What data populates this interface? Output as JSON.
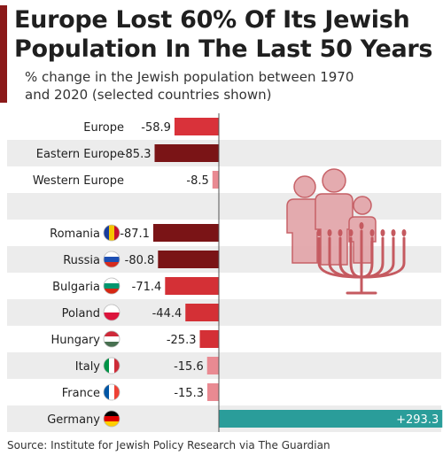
{
  "title": "Europe Lost 60% Of Its Jewish Population In The Last 50 Years",
  "subtitle": "% change in the Jewish population between 1970 and 2020 (selected countries shown)",
  "source": "Source: Institute for Jewish Policy Research via The Guardian",
  "colors": {
    "accent": "#8b1a1a",
    "europe_bar": "#d9323a",
    "dark_bar": "#7a1416",
    "mid_bar": "#d43036",
    "light_bar": "#e98a92",
    "positive_bar": "#2a9d9a",
    "row_band": "#ececec"
  },
  "illustration_icons": [
    "family-icon",
    "menorah-icon"
  ],
  "chart_data": {
    "type": "bar",
    "orientation": "horizontal",
    "title": "Europe Lost 60% Of Its Jewish Population In The Last 50 Years",
    "subtitle": "% change in the Jewish population between 1970 and 2020 (selected countries shown)",
    "categories": [
      "Europe",
      "Eastern Europe",
      "Western Europe",
      "",
      "Romania",
      "Russia",
      "Bulgaria",
      "Poland",
      "Hungary",
      "Italy",
      "France",
      "Germany"
    ],
    "values": [
      -58.9,
      -85.3,
      -8.5,
      null,
      -87.1,
      -80.8,
      -71.4,
      -44.4,
      -25.3,
      -15.6,
      -15.3,
      293.3
    ],
    "data_labels": [
      "-58.9",
      "-85.3",
      "-8.5",
      "",
      "-87.1",
      "-80.8",
      "-71.4",
      "-44.4",
      "-25.3",
      "-15.6",
      "-15.3",
      "+293.3"
    ],
    "flag_icons": [
      null,
      null,
      null,
      null,
      "romania-flag-icon",
      "russia-flag-icon",
      "bulgaria-flag-icon",
      "poland-flag-icon",
      "hungary-flag-icon",
      "italy-flag-icon",
      "france-flag-icon",
      "germany-flag-icon"
    ],
    "bar_colors": [
      "#d9323a",
      "#7a1416",
      "#e98a92",
      null,
      "#7a1416",
      "#7a1416",
      "#d43036",
      "#d43036",
      "#d43036",
      "#e98a92",
      "#e98a92",
      "#2a9d9a"
    ],
    "xlabel": "",
    "ylabel": "",
    "grid": false,
    "legend": "none"
  }
}
